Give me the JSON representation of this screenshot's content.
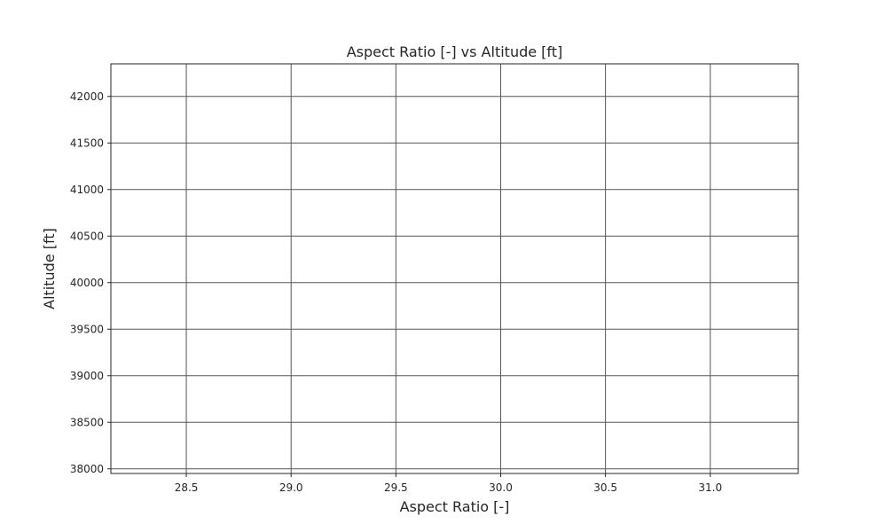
{
  "chart_data": {
    "type": "scatter",
    "title": "Aspect Ratio [-] vs Altitude [ft]",
    "xlabel": "Aspect Ratio [-]",
    "ylabel": "Altitude [ft]",
    "xlim": [
      28.14,
      31.42
    ],
    "ylim": [
      37950,
      42350
    ],
    "xticks": [
      28.5,
      29.0,
      29.5,
      30.0,
      30.5,
      31.0
    ],
    "xtick_labels": [
      "28.5",
      "29.0",
      "29.5",
      "30.0",
      "30.5",
      "31.0"
    ],
    "yticks": [
      38000,
      38500,
      39000,
      39500,
      40000,
      40500,
      41000,
      41500,
      42000
    ],
    "ytick_labels": [
      "38000",
      "38500",
      "39000",
      "39500",
      "40000",
      "40500",
      "41000",
      "41500",
      "42000"
    ],
    "grid": true,
    "series": []
  },
  "colors": {
    "grid": "#555555",
    "axes": "#262626",
    "background": "#ffffff"
  }
}
